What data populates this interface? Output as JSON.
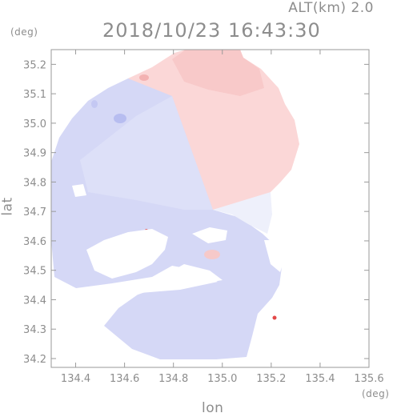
{
  "header": {
    "altitude_label": "ALT(km) 2.0",
    "timestamp": "2018/10/23 16:43:30"
  },
  "axes": {
    "x_label": "lon",
    "y_label": "lat",
    "x_unit": "(deg)",
    "y_unit": "(deg)",
    "x_range": [
      134.3,
      135.6
    ],
    "y_range": [
      34.17,
      35.25
    ],
    "x_ticks": [
      "134.4",
      "134.6",
      "134.8",
      "135.0",
      "135.2",
      "135.4",
      "135.6"
    ],
    "y_ticks": [
      "34.2",
      "34.3",
      "34.4",
      "34.5",
      "34.6",
      "34.7",
      "34.8",
      "34.9",
      "35.0",
      "35.1",
      "35.2"
    ]
  },
  "map": {
    "type": "radar doppler velocity",
    "radar_center": {
      "lon": 134.94,
      "lat": 34.71
    },
    "colors": {
      "approaching": "#d7d9f6",
      "receding": "#fbd7d7",
      "neutral": "#eef0fa",
      "frame": "#999999"
    }
  }
}
